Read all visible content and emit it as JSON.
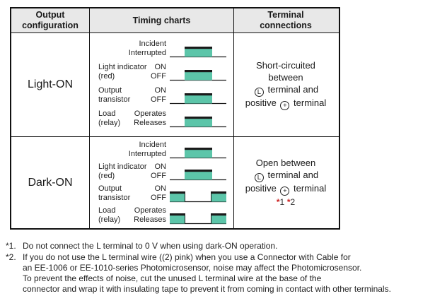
{
  "colors": {
    "teal": "#5cc5a9",
    "line": "#1a1a1a",
    "header_bg": "#e8e8e8",
    "red": "#cc2222"
  },
  "table": {
    "headers": [
      {
        "lines": [
          "Output",
          "configuration"
        ]
      },
      {
        "lines": [
          "Timing charts"
        ]
      },
      {
        "lines": [
          "Terminal",
          "connections"
        ]
      }
    ],
    "rows": [
      {
        "id": "light-on",
        "config": "Light-ON",
        "timing_groups": [
          {
            "label_lines": [],
            "state_top": "Incident",
            "state_bottom": "Interrupted",
            "wave": "pulse"
          },
          {
            "label_lines": [
              "Light indicator",
              "(red)"
            ],
            "state_top": "ON",
            "state_bottom": "OFF",
            "wave": "pulse"
          },
          {
            "label_lines": [
              "Output",
              "transistor"
            ],
            "state_top": "ON",
            "state_bottom": "OFF",
            "wave": "pulse"
          },
          {
            "label_lines": [
              "Load",
              "(relay)"
            ],
            "state_top": "Operates",
            "state_bottom": "Releases",
            "wave": "pulse"
          }
        ],
        "terminal_lines": [
          "Short-circuited",
          "between",
          "{L} terminal and",
          "positive {+} terminal"
        ]
      },
      {
        "id": "dark-on",
        "config": "Dark-ON",
        "timing_groups": [
          {
            "label_lines": [],
            "state_top": "Incident",
            "state_bottom": "Interrupted",
            "wave": "pulse"
          },
          {
            "label_lines": [
              "Light indicator",
              "(red)"
            ],
            "state_top": "ON",
            "state_bottom": "OFF",
            "wave": "pulse"
          },
          {
            "label_lines": [
              "Output",
              "transistor"
            ],
            "state_top": "ON",
            "state_bottom": "OFF",
            "wave": "inverted"
          },
          {
            "label_lines": [
              "Load",
              "(relay)"
            ],
            "state_top": "Operates",
            "state_bottom": "Releases",
            "wave": "inverted"
          }
        ],
        "terminal_lines": [
          "Open between",
          "{L} terminal and",
          "positive {+} terminal",
          "{r1} {r2}"
        ]
      }
    ]
  },
  "footnotes": [
    {
      "marker": "*1.",
      "lines": [
        "Do not connect the L terminal to 0 V when using dark-ON operation."
      ]
    },
    {
      "marker": "*2.",
      "lines": [
        "If you do not use the L terminal wire ((2) pink) when you use a Connector with Cable for",
        "an EE-1006 or EE-1010-series Photomicrosensor, noise may affect the Photomicrosensor.",
        "To prevent the effects of noise, cut the unused L terminal wire at the base of the",
        "connector and wrap it with insulating tape to prevent it from coming in contact with other terminals."
      ]
    }
  ]
}
